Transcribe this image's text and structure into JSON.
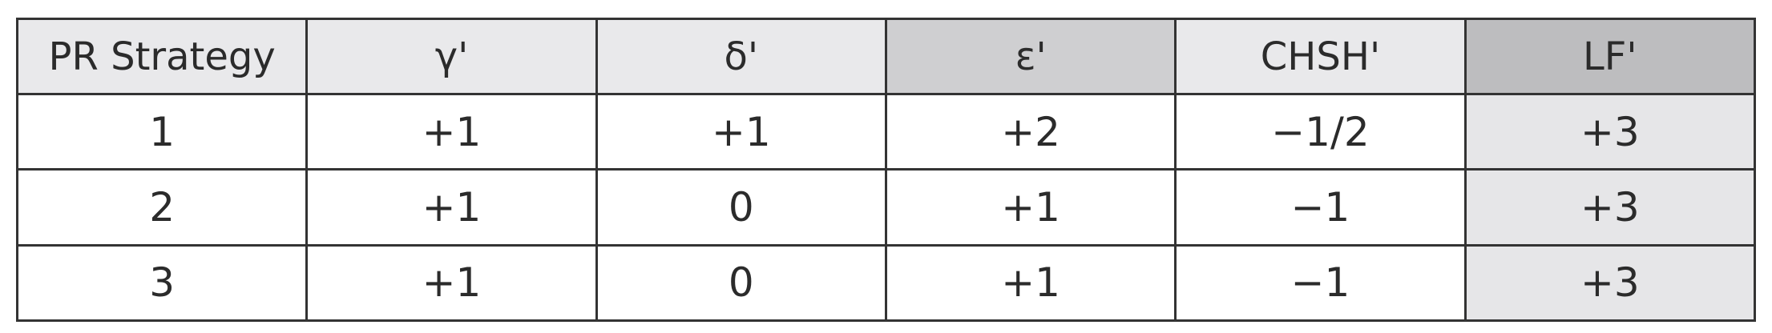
{
  "table": {
    "headers": [
      "PR Strategy",
      "γ'",
      "δ'",
      "ε'",
      "CHSH'",
      "LF'"
    ],
    "rows": [
      [
        "1",
        "+1",
        "+1",
        "+2",
        "−1/2",
        "+3"
      ],
      [
        "2",
        "+1",
        "0",
        "+1",
        "−1",
        "+3"
      ],
      [
        "3",
        "+1",
        "0",
        "+1",
        "−1",
        "+3"
      ]
    ]
  }
}
